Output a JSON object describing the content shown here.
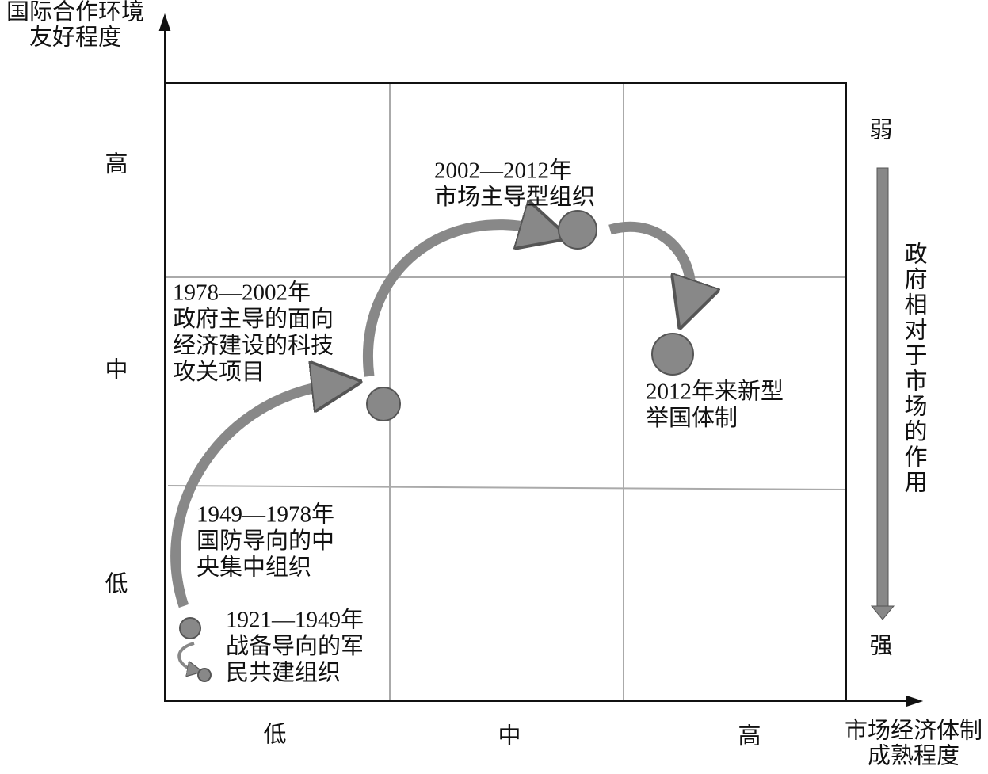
{
  "y_axis": {
    "label_lines": [
      "国际合作环境",
      "友好程度"
    ],
    "levels": [
      "高",
      "中",
      "低"
    ]
  },
  "x_axis": {
    "label_lines": [
      "市场经济体制",
      "成熟程度"
    ],
    "levels": [
      "低",
      "中",
      "高"
    ]
  },
  "side_scale": {
    "top": "弱",
    "label": "政府相对于市场的作用",
    "bottom": "强"
  },
  "stages": [
    {
      "label_lines": [
        "1921—1949年",
        "战备导向的军",
        "民共建组织"
      ]
    },
    {
      "label_lines": [
        "1949—1978年",
        "国防导向的中",
        "央集中组织"
      ]
    },
    {
      "label_lines": [
        "1978—2002年",
        "政府主导的面向",
        "经济建设的科技",
        "攻关项目"
      ]
    },
    {
      "label_lines": [
        "2002—2012年",
        "市场主导型组织"
      ]
    },
    {
      "label_lines": [
        "2012年来新型",
        "举国体制"
      ]
    }
  ]
}
